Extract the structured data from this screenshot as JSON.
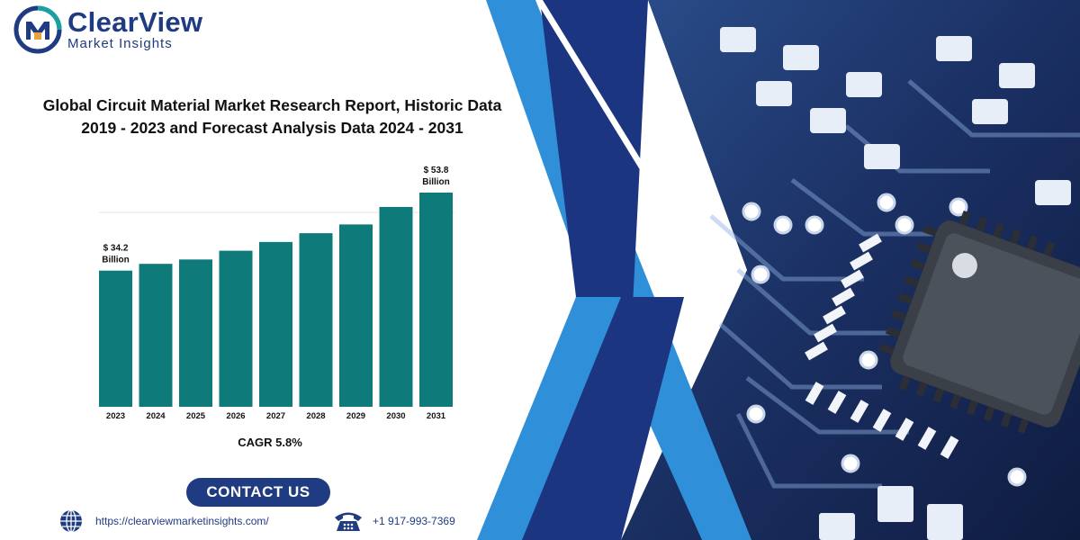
{
  "logo": {
    "title": "ClearView",
    "subtitle": "Market Insights"
  },
  "report": {
    "title_line1": "Global Circuit Material Market Research Report, Historic Data",
    "title_line2": "2019 - 2023 and Forecast Analysis Data 2024 - 2031"
  },
  "chart_data": {
    "type": "bar",
    "categories": [
      "2023",
      "2024",
      "2025",
      "2026",
      "2027",
      "2028",
      "2029",
      "2030",
      "2031"
    ],
    "values": [
      34.2,
      35.9,
      37.0,
      39.2,
      41.4,
      43.6,
      45.8,
      50.2,
      53.8
    ],
    "data_labels": [
      {
        "index": 0,
        "line1": "$ 34.2",
        "line2": "Billion"
      },
      {
        "index": 8,
        "line1": "$ 53.8",
        "line2": "Billion"
      }
    ],
    "unit": "Billion",
    "color": "#0e7a7a"
  },
  "cagr": "CAGR 5.8%",
  "contact": {
    "button_label": "CONTACT US",
    "website": "https://clearviewmarketinsights.com/",
    "phone": "+1 917-993-7369"
  },
  "colors": {
    "brand": "#1f3b82",
    "bar": "#0e7a7a",
    "accent_blue": "#2f8fd8"
  },
  "icons": [
    "logo-mark-icon",
    "globe-icon",
    "telephone-icon"
  ]
}
